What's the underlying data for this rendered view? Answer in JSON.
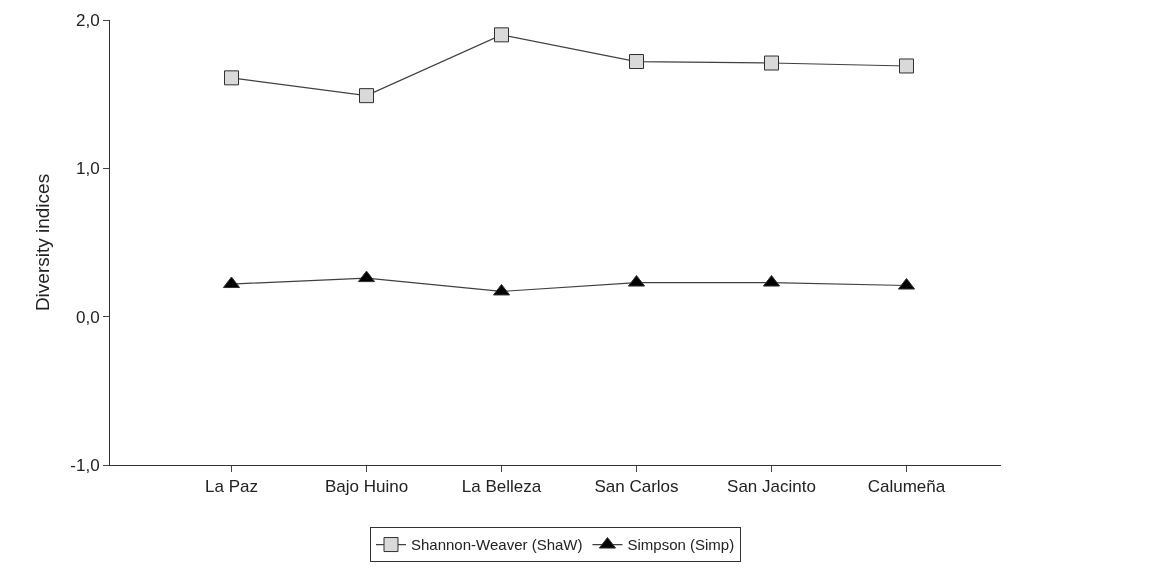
{
  "chart_data": {
    "type": "line",
    "ylabel": "Diversity indices",
    "categories": [
      "La Paz",
      "Bajo Huino",
      "La Belleza",
      "San Carlos",
      "San Jacinto",
      "Calumeña"
    ],
    "series": [
      {
        "name": "Shannon-Weaver (ShaW)",
        "color": "#d9d9d9",
        "marker": "square",
        "values": [
          1.61,
          1.49,
          1.9,
          1.72,
          1.71,
          1.69
        ]
      },
      {
        "name": "Simpson (Simp)",
        "color": "#000000",
        "marker": "triangle",
        "values": [
          0.22,
          0.26,
          0.17,
          0.23,
          0.23,
          0.21
        ]
      }
    ],
    "ylim": [
      -1,
      2
    ],
    "yticks": [
      {
        "value": -1,
        "label": "-1,0"
      },
      {
        "value": 0,
        "label": "0,0"
      },
      {
        "value": 1,
        "label": "1,0"
      },
      {
        "value": 2,
        "label": "2,0"
      }
    ],
    "legend": "bottom",
    "line_style": "solid"
  }
}
